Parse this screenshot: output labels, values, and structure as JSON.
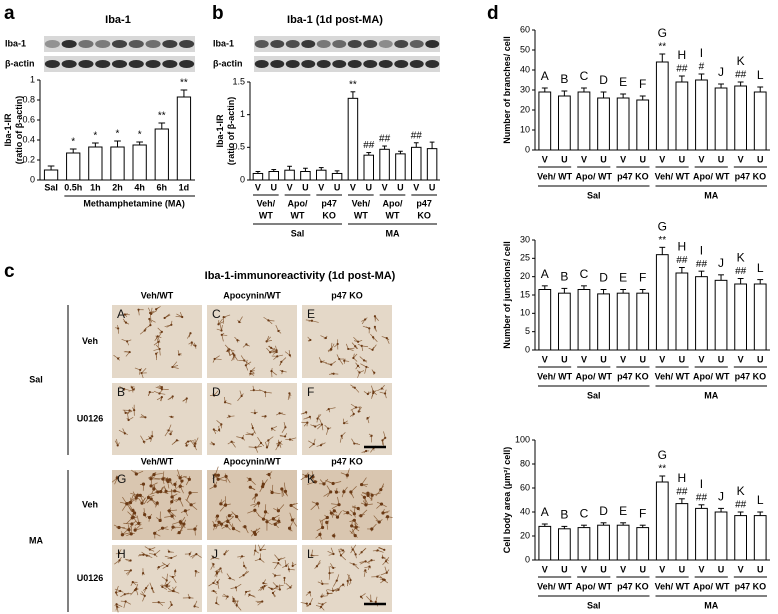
{
  "panel_labels": [
    "a",
    "b",
    "c",
    "d"
  ],
  "chart_data": [
    {
      "type": "bar",
      "title": "Iba-1",
      "blot_labels": [
        "Iba-1",
        "β-actin"
      ],
      "ylabel": [
        "Iba-1-IR",
        "(ratio of β-actin)"
      ],
      "xlabel": "Methamphetamine (MA)",
      "categories": [
        "Sal",
        "0.5h",
        "1h",
        "2h",
        "4h",
        "6h",
        "1d"
      ],
      "values": [
        0.1,
        0.27,
        0.33,
        0.33,
        0.35,
        0.51,
        0.83
      ],
      "errors": [
        0.04,
        0.04,
        0.04,
        0.06,
        0.03,
        0.06,
        0.07
      ],
      "annotations": [
        null,
        "*",
        "*",
        "*",
        "*",
        "**",
        "**"
      ],
      "ylim": [
        0,
        1
      ],
      "yticks": [
        0,
        0.2,
        0.4,
        0.6,
        0.8,
        1
      ],
      "color": "#ffffff"
    },
    {
      "type": "bar",
      "title": "Iba-1 (1d post-MA)",
      "blot_labels": [
        "Iba-1",
        "β-actin"
      ],
      "ylabel": [
        "Iba-1-IR",
        "(ratio of β-actin)"
      ],
      "categories": [
        "V",
        "U",
        "V",
        "U",
        "V",
        "U",
        "V",
        "U",
        "V",
        "U",
        "V",
        "U"
      ],
      "values": [
        0.1,
        0.13,
        0.15,
        0.13,
        0.15,
        0.1,
        1.25,
        0.38,
        0.47,
        0.4,
        0.5,
        0.48
      ],
      "errors": [
        0.03,
        0.03,
        0.06,
        0.05,
        0.04,
        0.04,
        0.1,
        0.04,
        0.05,
        0.04,
        0.07,
        0.1
      ],
      "annotations": [
        null,
        null,
        null,
        null,
        null,
        null,
        "**",
        "##",
        "##",
        null,
        "##",
        null
      ],
      "groups": [
        [
          "Veh/",
          "WT"
        ],
        [
          "Apo/",
          "WT"
        ],
        [
          "p47",
          "KO"
        ],
        [
          "Veh/",
          "WT"
        ],
        [
          "Apo/",
          "WT"
        ],
        [
          "p47",
          "KO"
        ]
      ],
      "conditions": [
        "Sal",
        "MA"
      ],
      "ylim": [
        0,
        1.5
      ],
      "yticks": [
        0,
        0.5,
        1,
        1.5
      ],
      "color": "#ffffff"
    },
    {
      "type": "bar",
      "ylabel": [
        "Number of branches/ cell"
      ],
      "letters": [
        "A",
        "B",
        "C",
        "D",
        "E",
        "F",
        "G",
        "H",
        "I",
        "J",
        "K",
        "L"
      ],
      "categories": [
        "V",
        "U",
        "V",
        "U",
        "V",
        "U",
        "V",
        "U",
        "V",
        "U",
        "V",
        "U"
      ],
      "values": [
        29,
        27,
        29,
        26,
        26,
        25,
        44,
        34,
        35,
        31,
        32,
        29
      ],
      "errors": [
        2,
        2.5,
        2,
        3,
        2,
        2,
        4,
        3,
        3,
        2,
        2,
        2.5
      ],
      "annotations": [
        null,
        null,
        null,
        null,
        null,
        null,
        "**",
        "##",
        "#",
        null,
        "##",
        null
      ],
      "groups": [
        "Veh/ WT",
        "Apo/ WT",
        "p47 KO",
        "Veh/ WT",
        "Apo/ WT",
        "p47 KO"
      ],
      "conditions": [
        "Sal",
        "MA"
      ],
      "ylim": [
        0,
        60
      ],
      "yticks": [
        0,
        10,
        20,
        30,
        40,
        50,
        60
      ],
      "color": "#ffffff"
    },
    {
      "type": "bar",
      "ylabel": [
        "Number of junctions/ cell"
      ],
      "letters": [
        "A",
        "B",
        "C",
        "D",
        "E",
        "F",
        "G",
        "H",
        "I",
        "J",
        "K",
        "L"
      ],
      "categories": [
        "V",
        "U",
        "V",
        "U",
        "V",
        "U",
        "V",
        "U",
        "V",
        "U",
        "V",
        "U"
      ],
      "values": [
        16.5,
        15.5,
        16.5,
        15.3,
        15.5,
        15.5,
        26,
        21,
        20,
        19,
        18,
        18
      ],
      "errors": [
        1,
        1.3,
        1,
        1.2,
        1,
        1,
        2,
        1.5,
        1.5,
        1.5,
        1.5,
        1.2
      ],
      "annotations": [
        null,
        null,
        null,
        null,
        null,
        null,
        "**",
        "##",
        "##",
        null,
        "##",
        null
      ],
      "groups": [
        "Veh/ WT",
        "Apo/ WT",
        "p47 KO",
        "Veh/ WT",
        "Apo/ WT",
        "p47 KO"
      ],
      "conditions": [
        "Sal",
        "MA"
      ],
      "ylim": [
        0,
        30
      ],
      "yticks": [
        0,
        5,
        10,
        15,
        20,
        25,
        30
      ],
      "color": "#ffffff"
    },
    {
      "type": "bar",
      "ylabel": [
        "Cell body area (μm²/ cell)"
      ],
      "letters": [
        "A",
        "B",
        "C",
        "D",
        "E",
        "F",
        "G",
        "H",
        "I",
        "J",
        "K",
        "L"
      ],
      "categories": [
        "V",
        "U",
        "V",
        "U",
        "V",
        "U",
        "V",
        "U",
        "V",
        "U",
        "V",
        "U"
      ],
      "values": [
        28,
        26,
        27,
        29,
        29,
        27,
        65,
        47,
        43,
        40,
        37,
        37
      ],
      "errors": [
        2,
        2,
        2,
        2,
        2,
        2,
        5,
        4,
        3,
        3,
        3,
        3
      ],
      "annotations": [
        null,
        null,
        null,
        null,
        null,
        null,
        "**",
        "##",
        "##",
        null,
        "##",
        null
      ],
      "groups": [
        "Veh/ WT",
        "Apo/ WT",
        "p47 KO",
        "Veh/ WT",
        "Apo/ WT",
        "p47 KO"
      ],
      "conditions": [
        "Sal",
        "MA"
      ],
      "ylim": [
        0,
        100
      ],
      "yticks": [
        0,
        20,
        40,
        60,
        80,
        100
      ],
      "color": "#ffffff"
    }
  ],
  "micrographs": {
    "title": "Iba-1-immunoreactivity (1d post-MA)",
    "column_headers": [
      "Veh/WT",
      "Apocynin/WT",
      "p47 KO"
    ],
    "treatments": [
      "Sal",
      "MA"
    ],
    "rows": [
      "Veh",
      "U0126"
    ],
    "panels": [
      [
        "A",
        "C",
        "E"
      ],
      [
        "B",
        "D",
        "F"
      ],
      [
        "G",
        "I",
        "K"
      ],
      [
        "H",
        "J",
        "L"
      ]
    ]
  }
}
